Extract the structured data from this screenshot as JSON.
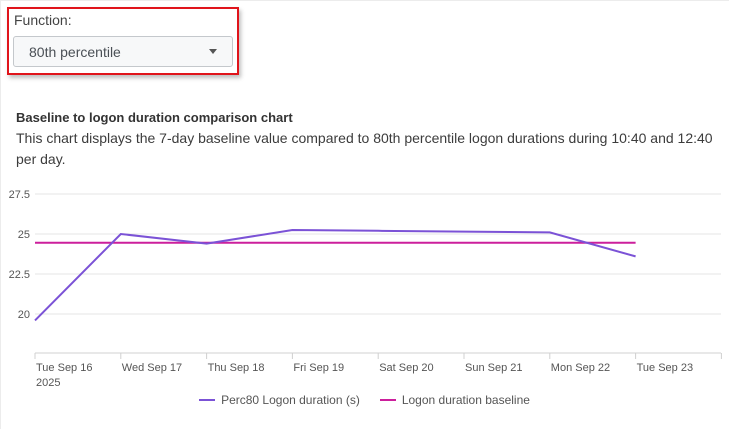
{
  "function_selector": {
    "label": "Function:",
    "selected": "80th percentile"
  },
  "chart_header": {
    "title": "Baseline to logon duration comparison chart",
    "description": "This chart displays the 7-day baseline value compared to 80th percentile logon durations during 10:40 and 12:40 per day."
  },
  "colors": {
    "perc80": "#7b52d6",
    "baseline": "#cc1f9c",
    "highlight_border": "#e0141b"
  },
  "chart_data": {
    "type": "line",
    "title": "Baseline to logon duration comparison chart",
    "xlabel": "",
    "ylabel": "",
    "categories": [
      "Tue Sep 16 2025",
      "Wed Sep 17",
      "Thu Sep 18",
      "Fri Sep 19",
      "Sat Sep 20",
      "Sun Sep 21",
      "Mon Sep 22",
      "Tue Sep 23"
    ],
    "x_tick_labels": [
      "Tue Sep 16",
      "Wed Sep 17",
      "Thu Sep 18",
      "Fri Sep 19",
      "Sat Sep 20",
      "Sun Sep 21",
      "Mon Sep 22",
      "Tue Sep 23"
    ],
    "x_tick_sublabel": "2025",
    "y_ticks": [
      20,
      22.5,
      25,
      27.5
    ],
    "ylim": [
      18.5,
      28
    ],
    "grid": true,
    "legend_position": "bottom",
    "series": [
      {
        "name": "Perc80 Logon duration (s)",
        "values": [
          19.6,
          25.0,
          24.4,
          25.25,
          25.2,
          25.15,
          25.1,
          23.6
        ]
      },
      {
        "name": "Logon duration baseline",
        "values": [
          24.45,
          24.45,
          24.45,
          24.45,
          24.45,
          24.45,
          24.45,
          24.45
        ]
      }
    ]
  }
}
